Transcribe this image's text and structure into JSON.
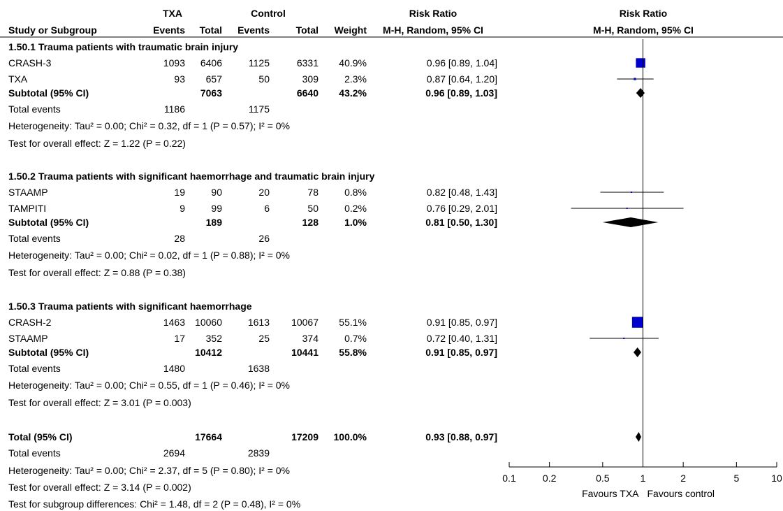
{
  "chart_data": {
    "type": "forest",
    "header": {
      "group_txa": "TXA",
      "group_control": "Control",
      "risk_ratio": "Risk Ratio",
      "col_study": "Study or Subgroup",
      "col_events": "Events",
      "col_total": "Total",
      "col_weight": "Weight",
      "col_ci": "M-H, Random, 95% CI",
      "plot_title": "Risk Ratio",
      "plot_subtitle": "M-H, Random, 95% CI"
    },
    "axis": {
      "scale": "log",
      "range": [
        0.1,
        10
      ],
      "ticks": [
        0.1,
        0.2,
        0.5,
        1,
        2,
        5,
        10
      ],
      "tick_labels": [
        "0.1",
        "0.2",
        "0.5",
        "1",
        "2",
        "5",
        "10"
      ],
      "favours_left": "Favours TXA",
      "favours_right": "Favours control"
    },
    "subgroups": [
      {
        "title": "1.50.1 Trauma patients with traumatic brain injury",
        "studies": [
          {
            "name": "CRASH-3",
            "txa_events": "1093",
            "txa_total": "6406",
            "ctrl_events": "1125",
            "ctrl_total": "6331",
            "weight": "40.9%",
            "ci_text": "0.96 [0.89, 1.04]",
            "rr": 0.96,
            "low": 0.89,
            "high": 1.04,
            "w": 40.9
          },
          {
            "name": "TXA",
            "txa_events": "93",
            "txa_total": "657",
            "ctrl_events": "50",
            "ctrl_total": "309",
            "weight": "2.3%",
            "ci_text": "0.87 [0.64, 1.20]",
            "rr": 0.87,
            "low": 0.64,
            "high": 1.2,
            "w": 2.3
          }
        ],
        "subtotal": {
          "label": "Subtotal (95% CI)",
          "txa_total": "7063",
          "ctrl_total": "6640",
          "weight": "43.2%",
          "ci_text": "0.96 [0.89, 1.03]",
          "rr": 0.96,
          "low": 0.89,
          "high": 1.03
        },
        "total_events": {
          "label": "Total events",
          "txa": "1186",
          "ctrl": "1175"
        },
        "heterogeneity": "Heterogeneity: Tau² = 0.00; Chi² = 0.32, df = 1 (P = 0.57); I² = 0%",
        "overall_effect": "Test for overall effect: Z = 1.22 (P = 0.22)"
      },
      {
        "title": "1.50.2 Trauma patients with significant haemorrhage and traumatic brain injury",
        "studies": [
          {
            "name": "STAAMP",
            "txa_events": "19",
            "txa_total": "90",
            "ctrl_events": "20",
            "ctrl_total": "78",
            "weight": "0.8%",
            "ci_text": "0.82 [0.48, 1.43]",
            "rr": 0.82,
            "low": 0.48,
            "high": 1.43,
            "w": 0.8
          },
          {
            "name": "TAMPITI",
            "txa_events": "9",
            "txa_total": "99",
            "ctrl_events": "6",
            "ctrl_total": "50",
            "weight": "0.2%",
            "ci_text": "0.76 [0.29, 2.01]",
            "rr": 0.76,
            "low": 0.29,
            "high": 2.01,
            "w": 0.2
          }
        ],
        "subtotal": {
          "label": "Subtotal (95% CI)",
          "txa_total": "189",
          "ctrl_total": "128",
          "weight": "1.0%",
          "ci_text": "0.81 [0.50, 1.30]",
          "rr": 0.81,
          "low": 0.5,
          "high": 1.3
        },
        "total_events": {
          "label": "Total events",
          "txa": "28",
          "ctrl": "26"
        },
        "heterogeneity": "Heterogeneity: Tau² = 0.00; Chi² = 0.02, df = 1 (P = 0.88); I² = 0%",
        "overall_effect": "Test for overall effect: Z = 0.88 (P = 0.38)"
      },
      {
        "title": "1.50.3 Trauma patients with significant haemorrhage",
        "studies": [
          {
            "name": "CRASH-2",
            "txa_events": "1463",
            "txa_total": "10060",
            "ctrl_events": "1613",
            "ctrl_total": "10067",
            "weight": "55.1%",
            "ci_text": "0.91 [0.85, 0.97]",
            "rr": 0.91,
            "low": 0.85,
            "high": 0.97,
            "w": 55.1
          },
          {
            "name": "STAAMP",
            "txa_events": "17",
            "txa_total": "352",
            "ctrl_events": "25",
            "ctrl_total": "374",
            "weight": "0.7%",
            "ci_text": "0.72 [0.40, 1.31]",
            "rr": 0.72,
            "low": 0.4,
            "high": 1.31,
            "w": 0.7
          }
        ],
        "subtotal": {
          "label": "Subtotal (95% CI)",
          "txa_total": "10412",
          "ctrl_total": "10441",
          "weight": "55.8%",
          "ci_text": "0.91 [0.85, 0.97]",
          "rr": 0.91,
          "low": 0.85,
          "high": 0.97
        },
        "total_events": {
          "label": "Total events",
          "txa": "1480",
          "ctrl": "1638"
        },
        "heterogeneity": "Heterogeneity: Tau² = 0.00; Chi² = 0.55, df = 1 (P = 0.46); I² = 0%",
        "overall_effect": "Test for overall effect: Z = 3.01 (P = 0.003)"
      }
    ],
    "total": {
      "label": "Total (95% CI)",
      "txa_total": "17664",
      "ctrl_total": "17209",
      "weight": "100.0%",
      "ci_text": "0.93 [0.88, 0.97]",
      "rr": 0.93,
      "low": 0.88,
      "high": 0.97,
      "events_label": "Total events",
      "events_txa": "2694",
      "events_ctrl": "2839",
      "heterogeneity": "Heterogeneity: Tau² = 0.00; Chi² = 2.37, df = 5 (P = 0.80); I² = 0%",
      "overall_effect": "Test for overall effect: Z = 3.14 (P = 0.002)",
      "subgroup_diff": "Test for subgroup differences: Chi² = 1.48, df = 2 (P = 0.48), I² = 0%"
    },
    "colors": {
      "square": "#0000cc",
      "diamond": "#000000",
      "line": "#000000"
    }
  }
}
